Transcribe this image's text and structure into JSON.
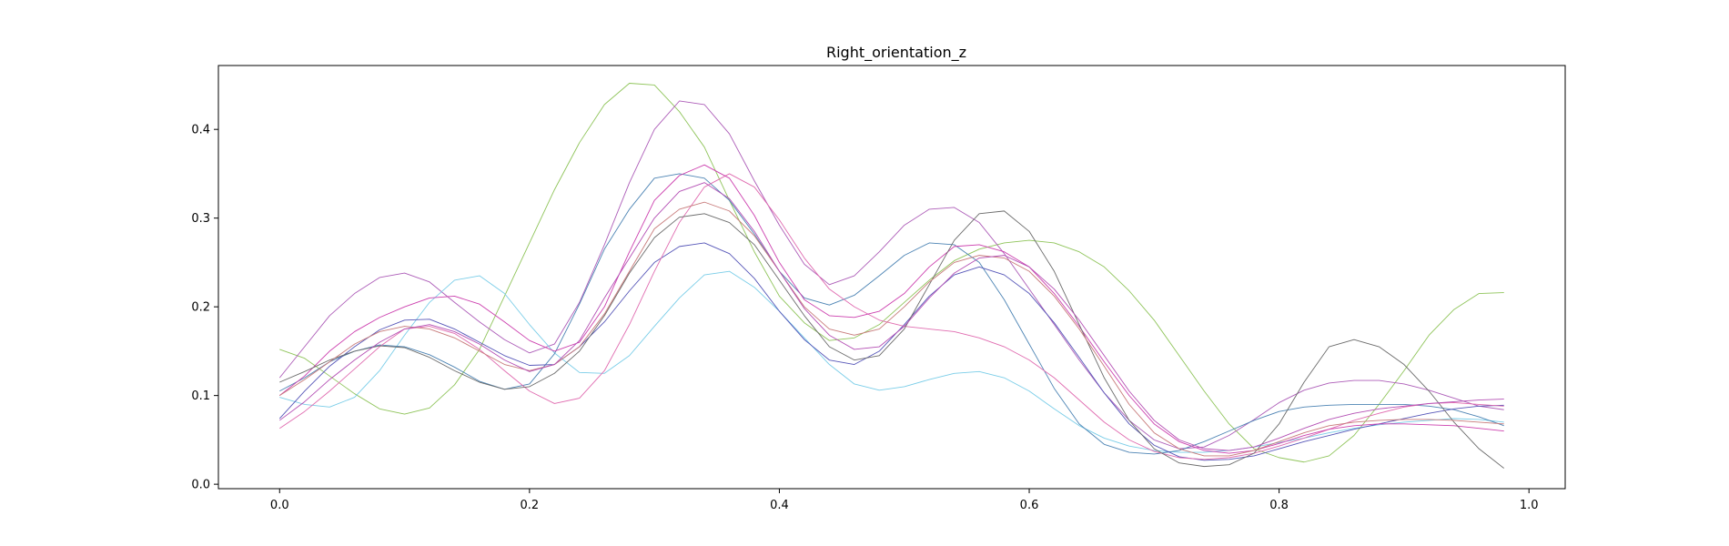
{
  "chart_data": {
    "type": "line",
    "title": "Right_orientation_z",
    "xlabel": "",
    "ylabel": "",
    "xlim": [
      -0.049,
      1.029
    ],
    "ylim": [
      -0.005,
      0.472
    ],
    "x_ticks": [
      0.0,
      0.2,
      0.4,
      0.6,
      0.8,
      1.0
    ],
    "x_tick_labels": [
      "0.0",
      "0.2",
      "0.4",
      "0.6",
      "0.8",
      "1.0"
    ],
    "y_ticks": [
      0.0,
      0.1,
      0.2,
      0.3,
      0.4
    ],
    "y_tick_labels": [
      "0.0",
      "0.1",
      "0.2",
      "0.3",
      "0.4"
    ],
    "grid": false,
    "x": [
      0,
      0.02,
      0.04,
      0.06,
      0.08,
      0.1,
      0.12,
      0.14,
      0.16,
      0.18,
      0.2,
      0.22,
      0.24,
      0.26,
      0.28,
      0.3,
      0.32,
      0.34,
      0.36,
      0.38,
      0.4,
      0.42,
      0.44,
      0.46,
      0.48,
      0.5,
      0.52,
      0.54,
      0.56,
      0.58,
      0.6,
      0.62,
      0.64,
      0.66,
      0.68,
      0.7,
      0.72,
      0.74,
      0.76,
      0.78,
      0.8,
      0.82,
      0.84,
      0.86,
      0.88,
      0.9,
      0.92,
      0.94,
      0.96,
      0.98
    ],
    "series": [
      {
        "color": "#8fc45a",
        "values": [
          0.152,
          0.142,
          0.122,
          0.102,
          0.085,
          0.079,
          0.086,
          0.112,
          0.152,
          0.212,
          0.272,
          0.332,
          0.385,
          0.428,
          0.452,
          0.45,
          0.42,
          0.38,
          0.32,
          0.262,
          0.212,
          0.182,
          0.162,
          0.165,
          0.18,
          0.205,
          0.23,
          0.252,
          0.265,
          0.272,
          0.275,
          0.272,
          0.262,
          0.245,
          0.218,
          0.185,
          0.145,
          0.105,
          0.068,
          0.04,
          0.03,
          0.025,
          0.032,
          0.055,
          0.09,
          0.128,
          0.168,
          0.197,
          0.215,
          0.216
        ]
      },
      {
        "color": "#ad5db8",
        "values": [
          0.12,
          0.155,
          0.19,
          0.215,
          0.233,
          0.238,
          0.228,
          0.205,
          0.183,
          0.163,
          0.148,
          0.158,
          0.205,
          0.27,
          0.34,
          0.4,
          0.432,
          0.428,
          0.395,
          0.342,
          0.292,
          0.248,
          0.225,
          0.235,
          0.262,
          0.292,
          0.31,
          0.312,
          0.295,
          0.26,
          0.22,
          0.18,
          0.14,
          0.103,
          0.072,
          0.05,
          0.04,
          0.042,
          0.055,
          0.073,
          0.092,
          0.106,
          0.114,
          0.117,
          0.117,
          0.113,
          0.106,
          0.097,
          0.088,
          0.084
        ]
      },
      {
        "color": "#7acde8",
        "values": [
          0.098,
          0.09,
          0.087,
          0.098,
          0.128,
          0.168,
          0.205,
          0.23,
          0.235,
          0.215,
          0.18,
          0.148,
          0.126,
          0.125,
          0.145,
          0.178,
          0.21,
          0.236,
          0.24,
          0.222,
          0.195,
          0.165,
          0.135,
          0.113,
          0.106,
          0.11,
          0.118,
          0.125,
          0.127,
          0.12,
          0.105,
          0.085,
          0.066,
          0.052,
          0.043,
          0.038,
          0.036,
          0.036,
          0.038,
          0.042,
          0.047,
          0.052,
          0.058,
          0.063,
          0.067,
          0.07,
          0.072,
          0.074,
          0.073,
          0.07
        ]
      },
      {
        "color": "#4d84b4",
        "values": [
          0.105,
          0.12,
          0.138,
          0.15,
          0.157,
          0.155,
          0.146,
          0.132,
          0.116,
          0.107,
          0.113,
          0.147,
          0.203,
          0.265,
          0.31,
          0.345,
          0.35,
          0.345,
          0.32,
          0.282,
          0.24,
          0.21,
          0.202,
          0.213,
          0.235,
          0.258,
          0.272,
          0.27,
          0.25,
          0.208,
          0.158,
          0.108,
          0.068,
          0.045,
          0.036,
          0.034,
          0.038,
          0.048,
          0.06,
          0.072,
          0.082,
          0.087,
          0.089,
          0.09,
          0.09,
          0.09,
          0.088,
          0.084,
          0.076,
          0.066
        ]
      },
      {
        "color": "#5656b8",
        "values": [
          0.074,
          0.105,
          0.133,
          0.155,
          0.174,
          0.185,
          0.186,
          0.175,
          0.16,
          0.145,
          0.134,
          0.135,
          0.155,
          0.183,
          0.218,
          0.25,
          0.268,
          0.272,
          0.26,
          0.232,
          0.195,
          0.163,
          0.14,
          0.135,
          0.15,
          0.18,
          0.212,
          0.236,
          0.245,
          0.236,
          0.215,
          0.182,
          0.143,
          0.103,
          0.068,
          0.044,
          0.031,
          0.027,
          0.028,
          0.032,
          0.04,
          0.048,
          0.055,
          0.062,
          0.068,
          0.074,
          0.08,
          0.085,
          0.088,
          0.089
        ]
      },
      {
        "color": "#e06cb0",
        "values": [
          0.063,
          0.082,
          0.105,
          0.13,
          0.155,
          0.175,
          0.178,
          0.17,
          0.152,
          0.128,
          0.105,
          0.091,
          0.097,
          0.128,
          0.18,
          0.24,
          0.295,
          0.335,
          0.35,
          0.335,
          0.298,
          0.255,
          0.22,
          0.2,
          0.185,
          0.178,
          0.175,
          0.172,
          0.165,
          0.155,
          0.14,
          0.12,
          0.095,
          0.07,
          0.05,
          0.037,
          0.03,
          0.028,
          0.03,
          0.035,
          0.043,
          0.052,
          0.062,
          0.072,
          0.08,
          0.087,
          0.091,
          0.092,
          0.09,
          0.088
        ]
      },
      {
        "color": "#cc3fae",
        "values": [
          0.1,
          0.122,
          0.15,
          0.172,
          0.188,
          0.2,
          0.21,
          0.212,
          0.203,
          0.183,
          0.162,
          0.15,
          0.16,
          0.2,
          0.262,
          0.32,
          0.348,
          0.36,
          0.345,
          0.303,
          0.25,
          0.208,
          0.19,
          0.188,
          0.195,
          0.215,
          0.245,
          0.268,
          0.27,
          0.262,
          0.245,
          0.215,
          0.178,
          0.138,
          0.1,
          0.068,
          0.048,
          0.038,
          0.035,
          0.038,
          0.046,
          0.055,
          0.062,
          0.066,
          0.068,
          0.068,
          0.067,
          0.066,
          0.063,
          0.06
        ]
      },
      {
        "color": "#6b6b6b",
        "values": [
          0.115,
          0.127,
          0.14,
          0.15,
          0.156,
          0.154,
          0.143,
          0.128,
          0.115,
          0.107,
          0.11,
          0.125,
          0.15,
          0.19,
          0.238,
          0.278,
          0.301,
          0.305,
          0.295,
          0.27,
          0.23,
          0.19,
          0.155,
          0.14,
          0.145,
          0.175,
          0.225,
          0.275,
          0.305,
          0.308,
          0.285,
          0.24,
          0.18,
          0.12,
          0.072,
          0.04,
          0.024,
          0.02,
          0.022,
          0.035,
          0.068,
          0.115,
          0.155,
          0.163,
          0.155,
          0.135,
          0.105,
          0.07,
          0.04,
          0.018
        ]
      },
      {
        "color": "#c77a7a",
        "values": [
          0.1,
          0.118,
          0.138,
          0.158,
          0.172,
          0.178,
          0.175,
          0.165,
          0.15,
          0.135,
          0.128,
          0.135,
          0.155,
          0.192,
          0.24,
          0.288,
          0.31,
          0.318,
          0.308,
          0.28,
          0.24,
          0.2,
          0.175,
          0.168,
          0.175,
          0.2,
          0.228,
          0.25,
          0.258,
          0.255,
          0.24,
          0.212,
          0.175,
          0.133,
          0.09,
          0.058,
          0.04,
          0.032,
          0.032,
          0.038,
          0.048,
          0.058,
          0.066,
          0.07,
          0.072,
          0.073,
          0.073,
          0.072,
          0.07,
          0.068
        ]
      },
      {
        "color": "#b44fb4",
        "values": [
          0.072,
          0.093,
          0.118,
          0.14,
          0.16,
          0.175,
          0.18,
          0.172,
          0.158,
          0.14,
          0.127,
          0.135,
          0.162,
          0.21,
          0.255,
          0.3,
          0.33,
          0.34,
          0.322,
          0.285,
          0.24,
          0.198,
          0.168,
          0.152,
          0.155,
          0.178,
          0.21,
          0.238,
          0.255,
          0.258,
          0.245,
          0.22,
          0.185,
          0.145,
          0.105,
          0.072,
          0.05,
          0.04,
          0.038,
          0.042,
          0.052,
          0.063,
          0.073,
          0.08,
          0.085,
          0.088,
          0.091,
          0.093,
          0.095,
          0.096
        ]
      }
    ]
  }
}
